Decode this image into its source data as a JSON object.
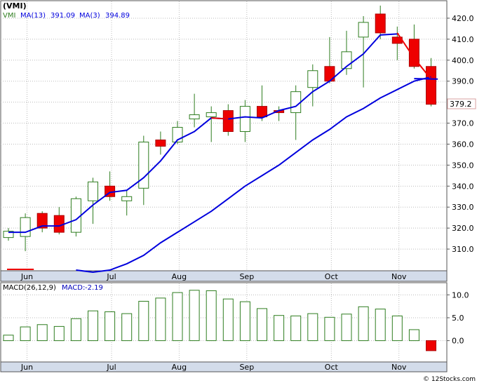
{
  "chart_data": [
    {
      "type": "candlestick",
      "title": "(VMI)",
      "legend": [
        {
          "label": "VMI",
          "color": "#2e7d1f"
        },
        {
          "label": "MA(13)",
          "value": "391.09",
          "color": "#0000dd"
        },
        {
          "label": "MA(3)",
          "value": "394.89",
          "color": "#0000dd"
        }
      ],
      "last_price_label": "379.2",
      "ylim": [
        300,
        428
      ],
      "y_ticks": [
        310,
        320,
        330,
        340,
        350,
        360,
        370,
        380,
        390,
        400,
        410,
        420
      ],
      "y_tick_labels": [
        "310.0",
        "320.0",
        "330.0",
        "340.0",
        "350.0",
        "360.0",
        "370.0",
        "380.0",
        "390.0",
        "400.0",
        "410.0",
        "420.0"
      ],
      "x_tick_labels": [
        "Jun",
        "Jul",
        "Aug",
        "Sep",
        "Oct",
        "Nov"
      ],
      "x_tick_index": [
        1.1,
        6.1,
        10.1,
        14.1,
        19.1,
        23.1
      ],
      "candles": [
        {
          "open": 315.5,
          "close": 318.5,
          "high": 320,
          "low": 314
        },
        {
          "open": 316,
          "close": 325,
          "high": 327,
          "low": 309
        },
        {
          "open": 327,
          "close": 320,
          "high": 328,
          "low": 318
        },
        {
          "open": 326,
          "close": 318,
          "high": 330,
          "low": 317
        },
        {
          "open": 318,
          "close": 334,
          "high": 335,
          "low": 316
        },
        {
          "open": 333,
          "close": 342,
          "high": 344,
          "low": 322
        },
        {
          "open": 340,
          "close": 335,
          "high": 347,
          "low": 333
        },
        {
          "open": 333,
          "close": 335,
          "high": 338,
          "low": 326
        },
        {
          "open": 339,
          "close": 361,
          "high": 364,
          "low": 331
        },
        {
          "open": 362,
          "close": 359,
          "high": 366,
          "low": 355
        },
        {
          "open": 361,
          "close": 368,
          "high": 371,
          "low": 360
        },
        {
          "open": 372,
          "close": 374,
          "high": 384,
          "low": 368
        },
        {
          "open": 373,
          "close": 375,
          "high": 378,
          "low": 361
        },
        {
          "open": 376,
          "close": 366,
          "high": 379,
          "low": 364
        },
        {
          "open": 366,
          "close": 378,
          "high": 381,
          "low": 361
        },
        {
          "open": 378,
          "close": 373,
          "high": 388,
          "low": 371
        },
        {
          "open": 376,
          "close": 375,
          "high": 378,
          "low": 371
        },
        {
          "open": 375,
          "close": 385,
          "high": 388,
          "low": 362
        },
        {
          "open": 387,
          "close": 395,
          "high": 398,
          "low": 378
        },
        {
          "open": 397,
          "close": 390,
          "high": 411,
          "low": 389
        },
        {
          "open": 396,
          "close": 404,
          "high": 414,
          "low": 393
        },
        {
          "open": 411,
          "close": 418,
          "high": 421,
          "low": 387
        },
        {
          "open": 422,
          "close": 413,
          "high": 426,
          "low": 410
        },
        {
          "open": 411,
          "close": 408,
          "high": 416,
          "low": 400
        },
        {
          "open": 410,
          "close": 397,
          "high": 417,
          "low": 396
        },
        {
          "open": 397,
          "close": 379,
          "high": 401,
          "low": 378
        }
      ],
      "ma13": [
        300,
        299,
        300,
        303,
        307,
        313,
        318,
        323,
        328,
        334,
        340,
        345,
        350,
        356,
        362,
        367,
        373,
        377,
        382,
        386,
        390,
        392
      ],
      "ma13_start_index": 4,
      "ma13_red_end_x_frac": 0.6,
      "ma3": [
        318,
        318,
        321,
        321,
        324,
        331,
        337,
        338,
        344,
        352,
        362,
        366,
        372.5,
        372,
        373,
        372.5,
        376,
        378,
        385,
        390,
        397,
        403,
        412,
        412.5
      ],
      "ma3_red_segments": [
        [
          12,
          13
        ],
        [
          23,
          24
        ],
        [
          24,
          25
        ]
      ]
    },
    {
      "type": "bar",
      "title": "MACD(26,12,9)",
      "legend": [
        {
          "label": "MACD(26,12,9)",
          "color": "#0000bb"
        },
        {
          "label": "MACD:",
          "value": "-2.19",
          "color": "#0000bb"
        }
      ],
      "ylim": [
        -4.5,
        12.5
      ],
      "y_ticks": [
        0,
        5,
        10
      ],
      "y_tick_labels": [
        "0.0",
        "5.0",
        "10.0"
      ],
      "x_tick_labels": [
        "Jun",
        "Jul",
        "Aug",
        "Sep",
        "Oct",
        "Nov"
      ],
      "values": [
        1.2,
        3.0,
        3.5,
        3.1,
        4.8,
        6.5,
        6.3,
        5.9,
        8.6,
        9.3,
        10.5,
        11.0,
        10.9,
        9.1,
        8.5,
        7.0,
        5.5,
        5.4,
        5.9,
        5.1,
        5.8,
        7.4,
        6.9,
        5.4,
        2.4,
        -2.19
      ]
    }
  ],
  "watermark": "© 12Stocks.com"
}
